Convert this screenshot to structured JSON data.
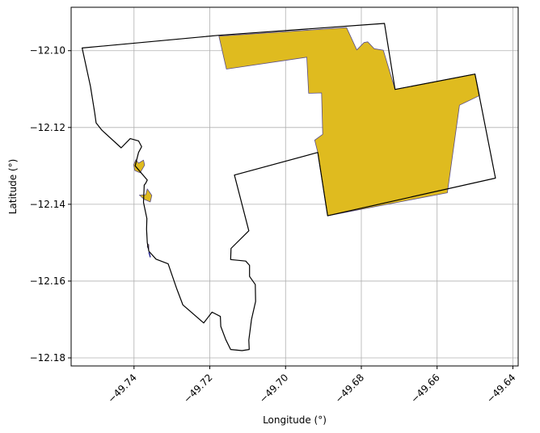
{
  "map": {
    "xlabel": "Longitude (°)",
    "ylabel": "Latitude (°)",
    "xlim": [
      -49.7566,
      -49.6386
    ],
    "ylim": [
      -12.1821,
      -12.0887
    ],
    "grid": true,
    "x_ticks": [
      {
        "value": -49.74,
        "label": "−49.74"
      },
      {
        "value": -49.72,
        "label": "−49.72"
      },
      {
        "value": -49.7,
        "label": "−49.70"
      },
      {
        "value": -49.68,
        "label": "−49.68"
      },
      {
        "value": -49.66,
        "label": "−49.66"
      },
      {
        "value": -49.64,
        "label": "−49.64"
      }
    ],
    "y_ticks": [
      {
        "value": -12.1,
        "label": "−12.10"
      },
      {
        "value": -12.12,
        "label": "−12.12"
      },
      {
        "value": -12.14,
        "label": "−12.14"
      },
      {
        "value": -12.16,
        "label": "−12.16"
      },
      {
        "value": -12.18,
        "label": "−12.18"
      }
    ],
    "colors": {
      "fill_area": "#dfbb1f",
      "fill_edge": "#5b4f8a",
      "boundary": "#000000",
      "small_segment": "#1a1a8c",
      "grid": "#b0b0b0"
    },
    "layers": {
      "boundary_polygon": [
        [
          -49.7537,
          -12.0993
        ],
        [
          -49.7176,
          -12.096
        ],
        [
          -49.6739,
          -12.0929
        ],
        [
          -49.6711,
          -12.1101
        ],
        [
          -49.65,
          -12.1061
        ],
        [
          -49.6446,
          -12.1332
        ],
        [
          -49.6889,
          -12.143
        ],
        [
          -49.6915,
          -12.1265
        ],
        [
          -49.7135,
          -12.1324
        ],
        [
          -49.7097,
          -12.1469
        ],
        [
          -49.7144,
          -12.1515
        ],
        [
          -49.7145,
          -12.1544
        ],
        [
          -49.7105,
          -12.1548
        ],
        [
          -49.7095,
          -12.1559
        ],
        [
          -49.7095,
          -12.1588
        ],
        [
          -49.708,
          -12.1609
        ],
        [
          -49.7079,
          -12.1653
        ],
        [
          -49.709,
          -12.17
        ],
        [
          -49.7097,
          -12.1754
        ],
        [
          -49.7096,
          -12.1778
        ],
        [
          -49.7115,
          -12.1781
        ],
        [
          -49.7145,
          -12.1778
        ],
        [
          -49.7158,
          -12.1752
        ],
        [
          -49.7171,
          -12.1718
        ],
        [
          -49.7172,
          -12.1692
        ],
        [
          -49.7194,
          -12.1681
        ],
        [
          -49.7216,
          -12.1709
        ],
        [
          -49.7271,
          -12.1662
        ],
        [
          -49.7287,
          -12.1621
        ],
        [
          -49.731,
          -12.1555
        ],
        [
          -49.7342,
          -12.1543
        ],
        [
          -49.7361,
          -12.1522
        ],
        [
          -49.7365,
          -12.15
        ],
        [
          -49.7367,
          -12.1465
        ],
        [
          -49.7366,
          -12.1437
        ],
        [
          -49.7375,
          -12.1395
        ],
        [
          -49.7373,
          -12.135
        ],
        [
          -49.7369,
          -12.1345
        ],
        [
          -49.7365,
          -12.1337
        ],
        [
          -49.7397,
          -12.13
        ],
        [
          -49.7388,
          -12.1265
        ],
        [
          -49.738,
          -12.125
        ],
        [
          -49.7388,
          -12.1235
        ],
        [
          -49.741,
          -12.1229
        ],
        [
          -49.7434,
          -12.1253
        ],
        [
          -49.7485,
          -12.1207
        ],
        [
          -49.75,
          -12.1188
        ],
        [
          -49.7504,
          -12.1161
        ],
        [
          -49.7515,
          -12.1093
        ],
        [
          -49.7537,
          -12.0993
        ]
      ],
      "fill_polygons": [
        {
          "name": "main_parcel",
          "coords": [
            [
              -49.7176,
              -12.0962
            ],
            [
              -49.6839,
              -12.094
            ],
            [
              -49.6812,
              -12.0998
            ],
            [
              -49.6793,
              -12.0979
            ],
            [
              -49.6783,
              -12.0977
            ],
            [
              -49.6766,
              -12.0995
            ],
            [
              -49.6742,
              -12.0999
            ],
            [
              -49.6711,
              -12.1101
            ],
            [
              -49.65,
              -12.1061
            ],
            [
              -49.6488,
              -12.1117
            ],
            [
              -49.6541,
              -12.1142
            ],
            [
              -49.6573,
              -12.137
            ],
            [
              -49.6889,
              -12.143
            ],
            [
              -49.6915,
              -12.1265
            ],
            [
              -49.6923,
              -12.1233
            ],
            [
              -49.6902,
              -12.1218
            ],
            [
              -49.6905,
              -12.111
            ],
            [
              -49.6939,
              -12.1111
            ],
            [
              -49.6944,
              -12.1017
            ],
            [
              -49.7156,
              -12.1048
            ],
            [
              -49.7176,
              -12.0962
            ]
          ]
        },
        {
          "name": "islet_a",
          "coords": [
            [
              -49.7388,
              -12.1293
            ],
            [
              -49.7375,
              -12.1285
            ],
            [
              -49.7372,
              -12.1298
            ],
            [
              -49.7384,
              -12.1318
            ],
            [
              -49.7398,
              -12.1312
            ],
            [
              -49.7401,
              -12.1297
            ],
            [
              -49.7395,
              -12.1284
            ],
            [
              -49.7388,
              -12.1293
            ]
          ]
        },
        {
          "name": "islet_b",
          "coords": [
            [
              -49.7373,
              -12.1387
            ],
            [
              -49.7386,
              -12.1376
            ],
            [
              -49.7369,
              -12.1375
            ],
            [
              -49.7365,
              -12.136
            ],
            [
              -49.7353,
              -12.1377
            ],
            [
              -49.7357,
              -12.1394
            ],
            [
              -49.7373,
              -12.1387
            ]
          ]
        },
        {
          "name": "islet_c",
          "coords": [
            [
              -49.7365,
              -12.1511
            ],
            [
              -49.7361,
              -12.1517
            ],
            [
              -49.7361,
              -12.1505
            ],
            [
              -49.7364,
              -12.1503
            ],
            [
              -49.7365,
              -12.1511
            ]
          ]
        }
      ],
      "small_segment": [
        [
          -49.7361,
          -12.1525
        ],
        [
          -49.7359,
          -12.153
        ],
        [
          -49.7357,
          -12.1538
        ]
      ]
    }
  }
}
